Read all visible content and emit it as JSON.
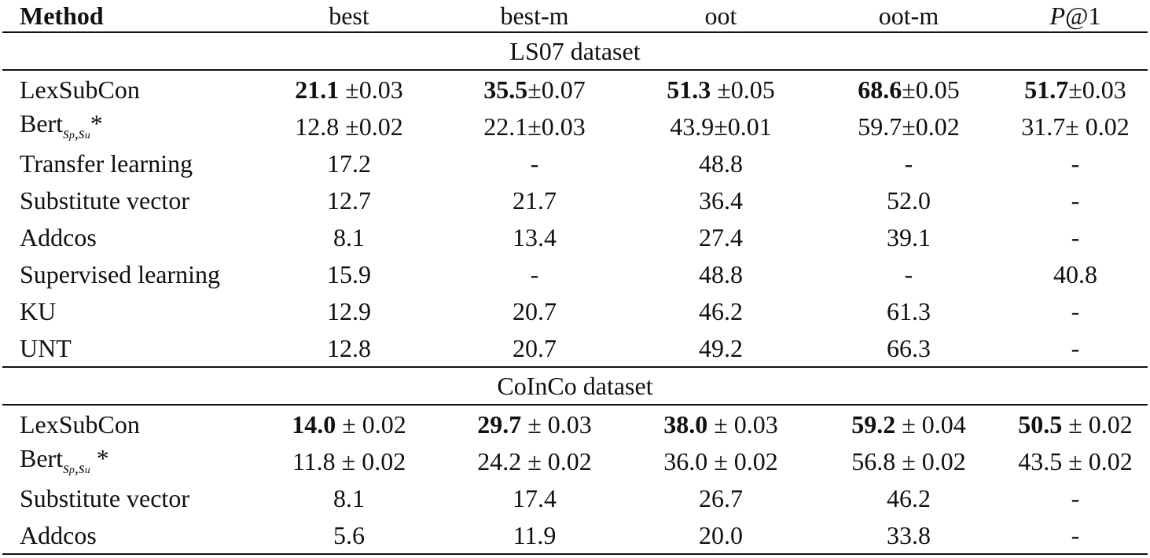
{
  "table": {
    "headers": [
      "Method",
      "best",
      "best-m",
      "oot",
      "oot-m",
      "P@1"
    ],
    "header_p_italic": "P",
    "header_p_rest": "@1",
    "sections": [
      {
        "title": "LS07 dataset",
        "rows": [
          {
            "method": "LexSubCon",
            "cells": [
              {
                "bold": "21.1",
                "rest": " ±0.03"
              },
              {
                "bold": "35.5",
                "rest": "±0.07"
              },
              {
                "bold": "51.3",
                "rest": " ±0.05"
              },
              {
                "bold": "68.6",
                "rest": "±0.05"
              },
              {
                "bold": "51.7",
                "rest": "±0.03"
              }
            ]
          },
          {
            "method": "Bert",
            "method_sub": "sp,su",
            "method_suffix": "*",
            "cells": [
              {
                "bold": "",
                "rest": "12.8 ±0.02"
              },
              {
                "bold": "",
                "rest": "22.1±0.03"
              },
              {
                "bold": "",
                "rest": "43.9±0.01"
              },
              {
                "bold": "",
                "rest": "59.7±0.02"
              },
              {
                "bold": "",
                "rest": "31.7± 0.02"
              }
            ]
          },
          {
            "method": "Transfer learning",
            "cells": [
              {
                "bold": "",
                "rest": "17.2"
              },
              {
                "bold": "",
                "rest": "-"
              },
              {
                "bold": "",
                "rest": "48.8"
              },
              {
                "bold": "",
                "rest": "-"
              },
              {
                "bold": "",
                "rest": "-"
              }
            ]
          },
          {
            "method": "Substitute vector",
            "cells": [
              {
                "bold": "",
                "rest": "12.7"
              },
              {
                "bold": "",
                "rest": "21.7"
              },
              {
                "bold": "",
                "rest": "36.4"
              },
              {
                "bold": "",
                "rest": "52.0"
              },
              {
                "bold": "",
                "rest": "-"
              }
            ]
          },
          {
            "method": "Addcos",
            "cells": [
              {
                "bold": "",
                "rest": "8.1"
              },
              {
                "bold": "",
                "rest": "13.4"
              },
              {
                "bold": "",
                "rest": "27.4"
              },
              {
                "bold": "",
                "rest": "39.1"
              },
              {
                "bold": "",
                "rest": "-"
              }
            ]
          },
          {
            "method": "Supervised learning",
            "cells": [
              {
                "bold": "",
                "rest": "15.9"
              },
              {
                "bold": "",
                "rest": "-"
              },
              {
                "bold": "",
                "rest": "48.8"
              },
              {
                "bold": "",
                "rest": "-"
              },
              {
                "bold": "",
                "rest": "40.8"
              }
            ]
          },
          {
            "method": "KU",
            "cells": [
              {
                "bold": "",
                "rest": "12.9"
              },
              {
                "bold": "",
                "rest": "20.7"
              },
              {
                "bold": "",
                "rest": "46.2"
              },
              {
                "bold": "",
                "rest": "61.3"
              },
              {
                "bold": "",
                "rest": "-"
              }
            ]
          },
          {
            "method": "UNT",
            "cells": [
              {
                "bold": "",
                "rest": "12.8"
              },
              {
                "bold": "",
                "rest": "20.7"
              },
              {
                "bold": "",
                "rest": "49.2"
              },
              {
                "bold": "",
                "rest": "66.3"
              },
              {
                "bold": "",
                "rest": "-"
              }
            ]
          }
        ]
      },
      {
        "title": "CoInCo dataset",
        "rows": [
          {
            "method": "LexSubCon",
            "cells": [
              {
                "bold": "14.0",
                "rest": " ± 0.02"
              },
              {
                "bold": "29.7",
                "rest": " ± 0.03"
              },
              {
                "bold": "38.0",
                "rest": " ± 0.03"
              },
              {
                "bold": "59.2",
                "rest": " ± 0.04"
              },
              {
                "bold": "50.5",
                "rest": " ± 0.02"
              }
            ]
          },
          {
            "method": "Bert",
            "method_sub": "sp,su",
            "method_suffix": " *",
            "cells": [
              {
                "bold": "",
                "rest": "11.8 ± 0.02"
              },
              {
                "bold": "",
                "rest": "24.2 ± 0.02"
              },
              {
                "bold": "",
                "rest": "36.0 ± 0.02"
              },
              {
                "bold": "",
                "rest": "56.8 ± 0.02"
              },
              {
                "bold": "",
                "rest": "43.5 ± 0.02"
              }
            ]
          },
          {
            "method": "Substitute vector",
            "cells": [
              {
                "bold": "",
                "rest": "8.1"
              },
              {
                "bold": "",
                "rest": "17.4"
              },
              {
                "bold": "",
                "rest": "26.7"
              },
              {
                "bold": "",
                "rest": "46.2"
              },
              {
                "bold": "",
                "rest": "-"
              }
            ]
          },
          {
            "method": "Addcos",
            "cells": [
              {
                "bold": "",
                "rest": "5.6"
              },
              {
                "bold": "",
                "rest": "11.9"
              },
              {
                "bold": "",
                "rest": "20.0"
              },
              {
                "bold": "",
                "rest": "33.8"
              },
              {
                "bold": "",
                "rest": "-"
              }
            ]
          }
        ]
      }
    ]
  }
}
